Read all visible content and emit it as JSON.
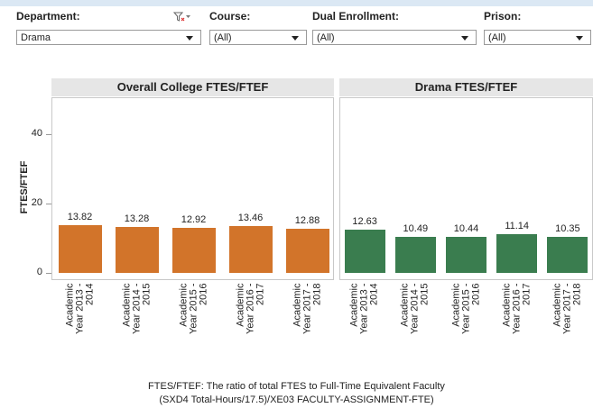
{
  "filters": [
    {
      "label": "Department:",
      "value": "Drama"
    },
    {
      "label": "Course:",
      "value": "(All)"
    },
    {
      "label": "Dual Enrollment:",
      "value": "(All)"
    },
    {
      "label": "Prison:",
      "value": "(All)"
    }
  ],
  "chart_data": [
    {
      "type": "bar",
      "title": "Overall College FTES/FTEF",
      "ylabel": "FTES/FTEF",
      "categories": [
        "Academic Year 2013 - 2014",
        "Academic Year 2014 - 2015",
        "Academic Year 2015 - 2016",
        "Academic Year 2016 - 2017",
        "Academic Year 2017 - 2018"
      ],
      "values": [
        13.82,
        13.28,
        12.92,
        13.46,
        12.88
      ],
      "color": "#d2742a",
      "ylim": [
        0,
        50
      ],
      "yticks": [
        0,
        20,
        40
      ],
      "grid": false
    },
    {
      "type": "bar",
      "title": "Drama FTES/FTEF",
      "categories": [
        "Academic Year 2013 - 2014",
        "Academic Year 2014 - 2015",
        "Academic Year 2015 - 2016",
        "Academic Year 2016 - 2017",
        "Academic Year 2017 - 2018"
      ],
      "values": [
        12.63,
        10.49,
        10.44,
        11.14,
        10.35
      ],
      "color": "#3a7d4f",
      "ylim": [
        0,
        50
      ]
    }
  ],
  "footnote": [
    "FTES/FTEF: The ratio of total FTES to Full-Time Equivalent Faculty",
    "(SXD4 Total-Hours/17.5)/XE03 FACULTY-ASSIGNMENT-FTE)"
  ]
}
